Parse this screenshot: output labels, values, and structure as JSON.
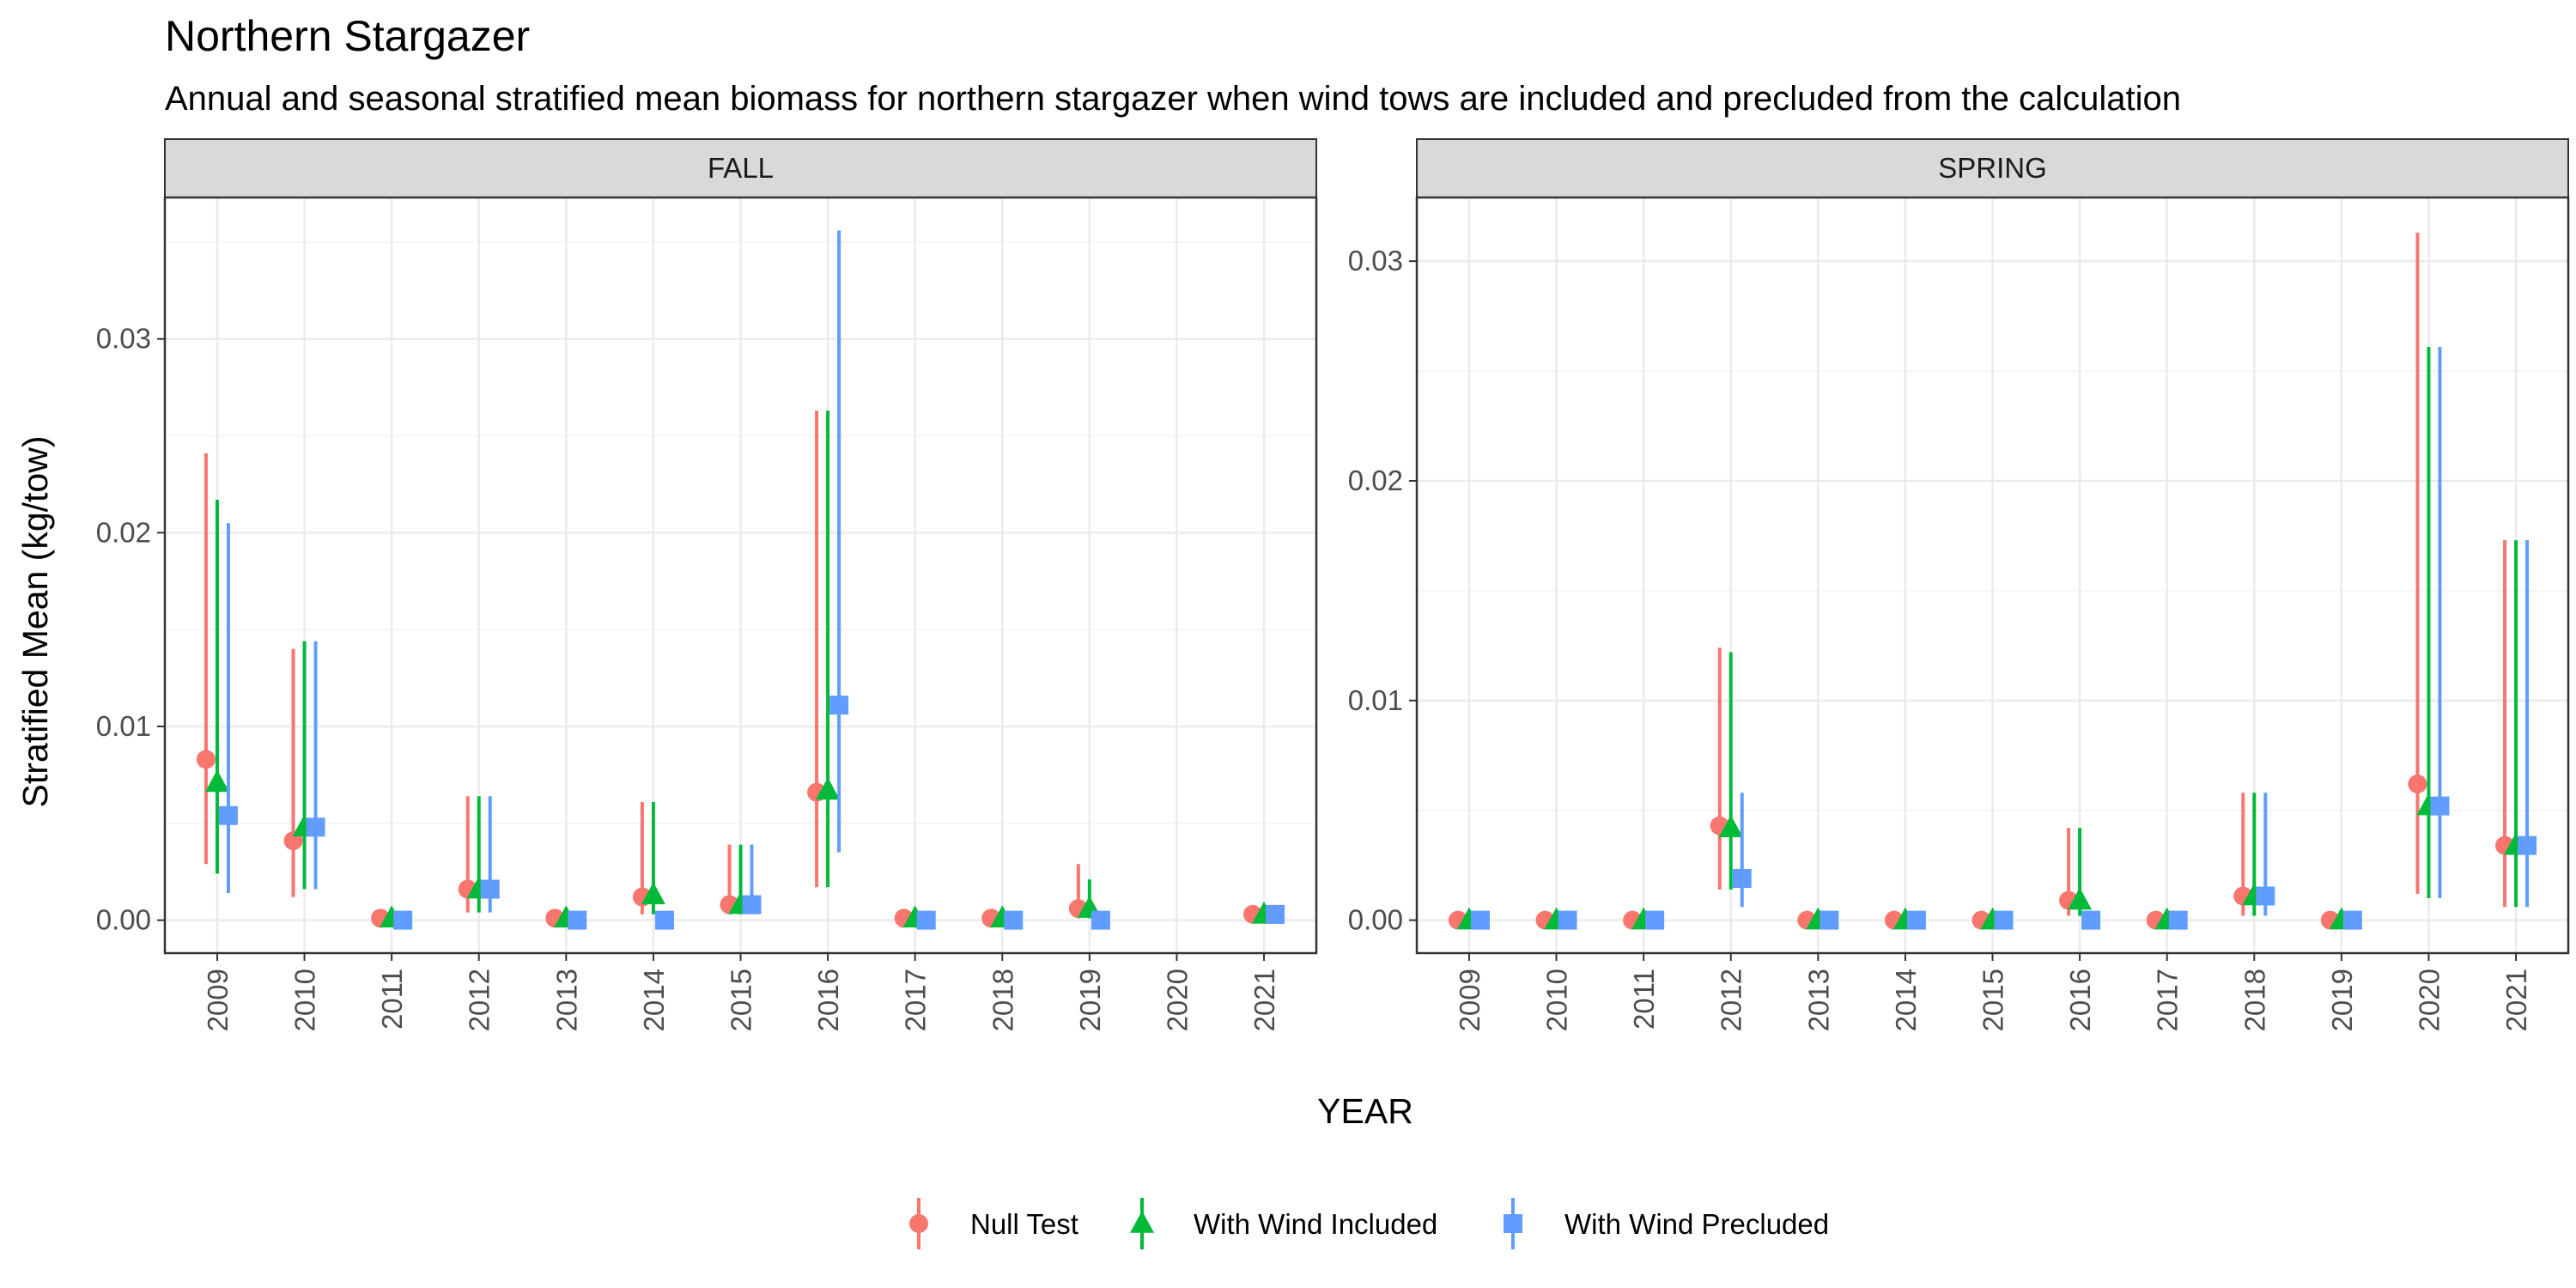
{
  "chart_data": {
    "type": "scatter",
    "title": "Northern Stargazer",
    "subtitle": "Annual and seasonal stratified mean biomass for northern stargazer when wind tows are included and precluded from the calculation",
    "xlabel": "YEAR",
    "ylabel": "Stratified Mean (kg/tow)",
    "categories": [
      "2009",
      "2010",
      "2011",
      "2012",
      "2013",
      "2014",
      "2015",
      "2016",
      "2017",
      "2018",
      "2019",
      "2020",
      "2021"
    ],
    "grid": true,
    "legend_position": "bottom",
    "legend": [
      {
        "name": "Null Test",
        "shape": "circle",
        "color": "#F8766D"
      },
      {
        "name": "With Wind Included",
        "shape": "triangle",
        "color": "#00BA38"
      },
      {
        "name": "With Wind Precluded",
        "shape": "square",
        "color": "#619CFF"
      }
    ],
    "panels": [
      {
        "name": "FALL",
        "ylim": [
          -0.0017,
          0.0373
        ],
        "yticks": [
          0,
          0.01,
          0.02,
          0.03
        ],
        "yticklabels": [
          "0.00",
          "0.01",
          "0.02",
          "0.03"
        ],
        "series": [
          {
            "name": "Null Test",
            "values": [
              0.0083,
              0.0041,
              0.0001,
              0.0016,
              0.0001,
              0.0012,
              0.0008,
              0.0066,
              0.0001,
              0.0001,
              0.0006,
              null,
              0.0003
            ],
            "lower": [
              0.0029,
              0.0012,
              0.0,
              0.0004,
              0.0,
              0.0003,
              0.0003,
              0.0017,
              0.0,
              0.0,
              0.0001,
              null,
              0.0
            ],
            "upper": [
              0.0241,
              0.014,
              0.0002,
              0.0064,
              0.0002,
              0.0061,
              0.0039,
              0.0263,
              0.0002,
              0.0002,
              0.0029,
              null,
              0.0006
            ]
          },
          {
            "name": "With Wind Included",
            "values": [
              0.0071,
              0.0048,
              0.0001,
              0.0016,
              0.0001,
              0.0013,
              0.0008,
              0.0067,
              0.0001,
              0.0001,
              0.0006,
              null,
              0.0003
            ],
            "lower": [
              0.0024,
              0.0016,
              0.0,
              0.0004,
              0.0,
              0.0003,
              0.0003,
              0.0017,
              0.0,
              0.0,
              0.0001,
              null,
              0.0
            ],
            "upper": [
              0.0217,
              0.0144,
              0.0002,
              0.0064,
              0.0002,
              0.0061,
              0.0039,
              0.0263,
              0.0002,
              0.0002,
              0.0021,
              null,
              0.0006
            ]
          },
          {
            "name": "With Wind Precluded",
            "values": [
              0.0054,
              0.0048,
              0.0,
              0.0016,
              0.0,
              0.0,
              0.0008,
              0.0111,
              0.0,
              0.0,
              0.0,
              null,
              0.0003
            ],
            "lower": [
              0.0014,
              0.0016,
              0.0,
              0.0004,
              0.0,
              0.0,
              0.0003,
              0.0035,
              0.0,
              0.0,
              0.0,
              null,
              0.0
            ],
            "upper": [
              0.0205,
              0.0144,
              0.0001,
              0.0064,
              0.0001,
              0.0,
              0.0039,
              0.0356,
              0.0001,
              0.0001,
              0.0,
              null,
              0.0006
            ]
          }
        ]
      },
      {
        "name": "SPRING",
        "ylim": [
          -0.0015,
          0.0329
        ],
        "yticks": [
          0,
          0.01,
          0.02,
          0.03
        ],
        "yticklabels": [
          "0.00",
          "0.01",
          "0.02",
          "0.03"
        ],
        "series": [
          {
            "name": "Null Test",
            "values": [
              0.0,
              0.0,
              0.0,
              0.0043,
              0.0,
              0.0,
              0.0,
              0.0009,
              0.0,
              0.0011,
              0.0,
              0.0062,
              0.0034
            ],
            "lower": [
              0.0,
              0.0,
              0.0,
              0.0014,
              0.0,
              0.0,
              0.0,
              0.0002,
              0.0,
              0.0002,
              0.0,
              0.0012,
              0.0006
            ],
            "upper": [
              0.0001,
              0.0001,
              0.0001,
              0.0124,
              0.0001,
              0.0001,
              0.0001,
              0.0042,
              0.0001,
              0.0058,
              0.0001,
              0.0313,
              0.0173
            ]
          },
          {
            "name": "With Wind Included",
            "values": [
              0.0,
              0.0,
              0.0,
              0.0042,
              0.0,
              0.0,
              0.0,
              0.0009,
              0.0,
              0.0011,
              0.0,
              0.0052,
              0.0034
            ],
            "lower": [
              0.0,
              0.0,
              0.0,
              0.0014,
              0.0,
              0.0,
              0.0,
              0.0002,
              0.0,
              0.0002,
              0.0,
              0.001,
              0.0006
            ],
            "upper": [
              0.0001,
              0.0001,
              0.0001,
              0.0122,
              0.0001,
              0.0001,
              0.0001,
              0.0042,
              0.0001,
              0.0058,
              0.0001,
              0.0261,
              0.0173
            ]
          },
          {
            "name": "With Wind Precluded",
            "values": [
              0.0,
              0.0,
              0.0,
              0.0019,
              0.0,
              0.0,
              0.0,
              0.0,
              0.0,
              0.0011,
              0.0,
              0.0052,
              0.0034
            ],
            "lower": [
              0.0,
              0.0,
              0.0,
              0.0006,
              0.0,
              0.0,
              0.0,
              0.0,
              0.0,
              0.0002,
              0.0,
              0.001,
              0.0006
            ],
            "upper": [
              0.0001,
              0.0001,
              0.0001,
              0.0058,
              0.0001,
              0.0001,
              0.0001,
              0.0001,
              0.0001,
              0.0058,
              0.0001,
              0.0261,
              0.0173
            ]
          }
        ]
      }
    ]
  }
}
